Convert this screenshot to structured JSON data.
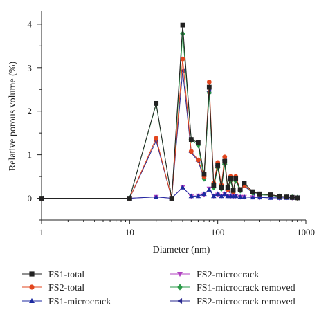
{
  "chart_data": {
    "type": "line",
    "xscale": "log",
    "xlim": [
      1,
      1000
    ],
    "ylim": [
      -0.5,
      4.3
    ],
    "xlabel": "Diameter (nm)",
    "ylabel": "Relative porous volume (%)",
    "xticks": [
      {
        "value": 1,
        "label": "1"
      },
      {
        "value": 10,
        "label": "10"
      },
      {
        "value": 100,
        "label": "100"
      },
      {
        "value": 1000,
        "label": "1000"
      }
    ],
    "yticks": [
      {
        "value": 0,
        "label": "0"
      },
      {
        "value": 1,
        "label": "1"
      },
      {
        "value": 2,
        "label": "2"
      },
      {
        "value": 3,
        "label": "3"
      },
      {
        "value": 4,
        "label": "4"
      }
    ],
    "grid": false,
    "legend_position": "bottom",
    "series": [
      {
        "name": "FS1-total",
        "color": "#222222",
        "marker": "square",
        "x": [
          1,
          10,
          20,
          30,
          40,
          50,
          60,
          70,
          80,
          90,
          100,
          110,
          120,
          130,
          140,
          150,
          160,
          180,
          200,
          250,
          300,
          400,
          500,
          600,
          700,
          800
        ],
        "y": [
          0,
          0,
          2.18,
          0,
          3.98,
          1.35,
          1.28,
          0.55,
          2.55,
          0.3,
          0.75,
          0.25,
          0.85,
          0.25,
          0.45,
          0.18,
          0.45,
          0.2,
          0.35,
          0.15,
          0.1,
          0.08,
          0.05,
          0.03,
          0.02,
          0.01
        ]
      },
      {
        "name": "FS2-total",
        "color": "#e2461e",
        "marker": "circle",
        "x": [
          1,
          10,
          20,
          30,
          40,
          50,
          60,
          70,
          80,
          90,
          100,
          110,
          120,
          130,
          140,
          150,
          160,
          180,
          200,
          250,
          300,
          400,
          500,
          600,
          700,
          800
        ],
        "y": [
          0,
          0,
          1.38,
          0,
          3.2,
          1.08,
          0.88,
          0.5,
          2.67,
          0.35,
          0.82,
          0.3,
          0.95,
          0.2,
          0.5,
          0.15,
          0.5,
          0.2,
          0.3,
          0.15,
          0.1,
          0.08,
          0.05,
          0.03,
          0.02,
          0.01
        ]
      },
      {
        "name": "FS1-microcrack",
        "color": "#1c2aa0",
        "marker": "triangle-up",
        "x": [
          1,
          10,
          20,
          30,
          40,
          50,
          60,
          70,
          80,
          90,
          100,
          110,
          120,
          130,
          140,
          150,
          160,
          180,
          200,
          250,
          300,
          400,
          500,
          600,
          700,
          800
        ],
        "y": [
          0,
          0,
          0.03,
          0,
          0.25,
          0.05,
          0.05,
          0.1,
          0.2,
          0.05,
          0.1,
          0.05,
          0.1,
          0.05,
          0.05,
          0.05,
          0.05,
          0.03,
          0.03,
          0.02,
          0.02,
          0.01,
          0.01,
          0.01,
          0.01,
          0.01
        ]
      },
      {
        "name": "FS2-microcrack",
        "color": "#b040c0",
        "marker": "triangle-down",
        "x": [
          1,
          10,
          20,
          30,
          40,
          50,
          60,
          70,
          80,
          90,
          100,
          110,
          120,
          130,
          140,
          150,
          160,
          180,
          200,
          250,
          300,
          400,
          500,
          600,
          700,
          800
        ],
        "y": [
          0,
          0,
          0.03,
          0,
          0.26,
          0.04,
          0.06,
          0.08,
          0.22,
          0.05,
          0.08,
          0.05,
          0.1,
          0.05,
          0.05,
          0.04,
          0.05,
          0.03,
          0.03,
          0.02,
          0.02,
          0.01,
          0.01,
          0.01,
          0.01,
          0.01
        ]
      },
      {
        "name": "FS1-microcrack removed",
        "color": "#2a9a48",
        "marker": "diamond",
        "x": [
          1,
          10,
          20,
          30,
          40,
          50,
          60,
          70,
          80,
          90,
          100,
          110,
          120,
          130,
          140,
          150,
          160,
          180,
          200,
          250,
          300,
          400,
          500,
          600,
          700,
          800
        ],
        "y": [
          0,
          0,
          2.16,
          0,
          3.78,
          1.35,
          1.22,
          0.45,
          2.42,
          0.25,
          0.7,
          0.22,
          0.78,
          0.2,
          0.4,
          0.15,
          0.4,
          0.18,
          0.32,
          0.12,
          0.08,
          0.07,
          0.04,
          0.03,
          0.02,
          0.01
        ]
      },
      {
        "name": "FS2-microcrack removed",
        "color": "#2a2a90",
        "marker": "triangle-left",
        "x": [
          1,
          10,
          20,
          30,
          40,
          50,
          60,
          70,
          80,
          90,
          100,
          110,
          120,
          130,
          140,
          150,
          160,
          180,
          200,
          250,
          300,
          400,
          500,
          600,
          700,
          800
        ],
        "y": [
          0,
          0,
          1.32,
          0,
          2.93,
          1.05,
          0.85,
          0.45,
          2.45,
          0.3,
          0.75,
          0.25,
          0.88,
          0.18,
          0.45,
          0.12,
          0.45,
          0.18,
          0.28,
          0.12,
          0.08,
          0.07,
          0.04,
          0.03,
          0.02,
          0.01
        ]
      }
    ]
  }
}
